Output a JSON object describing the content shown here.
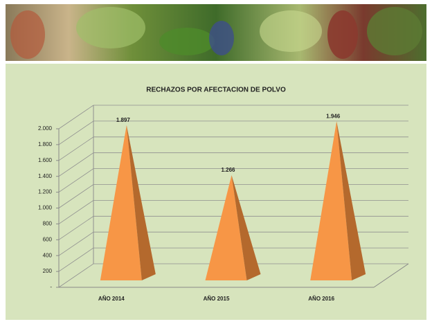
{
  "chart_data": {
    "type": "pyramid",
    "title": "RECHAZOS POR AFECTACION DE POLVO",
    "categories": [
      "AÑO 2014",
      "AÑO 2015",
      "AÑO 2016"
    ],
    "values": [
      1897,
      1266,
      1946
    ],
    "value_labels": [
      "1.897",
      "1.266",
      "1.946"
    ],
    "color": "#f79646",
    "ylim": [
      0,
      2000
    ],
    "yticks": [
      {
        "value": 0,
        "label": "-"
      },
      200,
      400,
      600,
      800,
      {
        "value": 1000,
        "label": "1.000"
      },
      {
        "value": 1200,
        "label": "1.200"
      },
      {
        "value": 1400,
        "label": "1.400"
      },
      {
        "value": 1600,
        "label": "1.600"
      },
      {
        "value": 1800,
        "label": "1.800"
      },
      {
        "value": 2000,
        "label": "2.000"
      }
    ],
    "grid": true
  }
}
